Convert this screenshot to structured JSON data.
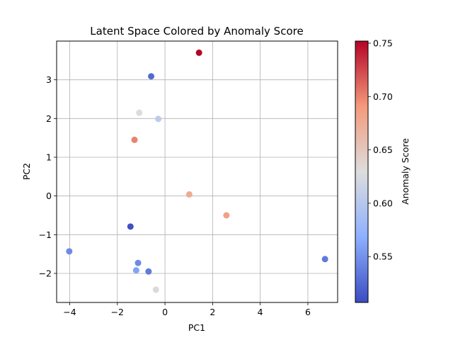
{
  "chart_data": {
    "type": "scatter",
    "title": "Latent Space Colored by Anomaly Score",
    "xlabel": "PC1",
    "ylabel": "PC2",
    "xlim": [
      -4.55,
      7.25
    ],
    "ylim": [
      -2.75,
      4.0
    ],
    "xticks": [
      -4,
      -2,
      0,
      2,
      4,
      6
    ],
    "yticks": [
      -2,
      -1,
      0,
      1,
      2,
      3
    ],
    "grid": true,
    "colormap": "coolwarm",
    "colorbar": {
      "label": "Anomaly Score",
      "range": [
        0.507,
        0.752
      ],
      "ticks": [
        0.55,
        0.6,
        0.65,
        0.7,
        0.75
      ]
    },
    "points": [
      {
        "x": 1.43,
        "y": 3.7,
        "score": 0.752
      },
      {
        "x": -0.58,
        "y": 3.09,
        "score": 0.525
      },
      {
        "x": -1.08,
        "y": 2.15,
        "score": 0.628
      },
      {
        "x": -0.28,
        "y": 1.99,
        "score": 0.605
      },
      {
        "x": -1.28,
        "y": 1.45,
        "score": 0.7
      },
      {
        "x": 1.02,
        "y": 0.04,
        "score": 0.675
      },
      {
        "x": 2.58,
        "y": -0.5,
        "score": 0.685
      },
      {
        "x": -1.45,
        "y": -0.79,
        "score": 0.51
      },
      {
        "x": -4.02,
        "y": -1.43,
        "score": 0.545
      },
      {
        "x": -1.13,
        "y": -1.73,
        "score": 0.545
      },
      {
        "x": 6.72,
        "y": -1.63,
        "score": 0.535
      },
      {
        "x": -1.21,
        "y": -1.92,
        "score": 0.56
      },
      {
        "x": -0.69,
        "y": -1.95,
        "score": 0.535
      },
      {
        "x": -0.38,
        "y": -2.42,
        "score": 0.625
      }
    ],
    "tick_text": {
      "x": [
        "−4",
        "−2",
        "0",
        "2",
        "4",
        "6"
      ],
      "y": [
        "−2",
        "−1",
        "0",
        "1",
        "2",
        "3"
      ],
      "c": [
        "0.55",
        "0.60",
        "0.65",
        "0.70",
        "0.75"
      ]
    }
  }
}
